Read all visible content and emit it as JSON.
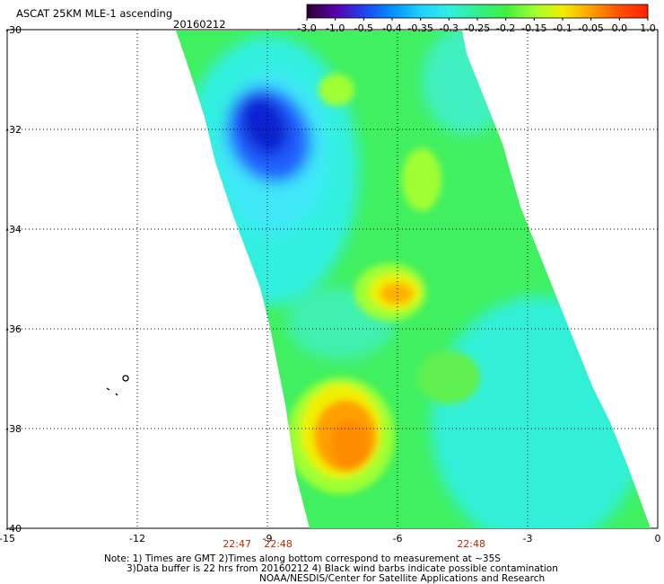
{
  "header": {
    "title": "ASCAT 25KM MLE-1 ascending",
    "date": "20160212"
  },
  "colorbar": {
    "tick_labels": [
      "-3.0",
      "-1.0",
      "-0.5",
      "-0.4",
      "-0.35",
      "-0.3",
      "-0.25",
      "-0.2",
      "-0.15",
      "-0.1",
      "-0.05",
      "0.0",
      "1.0"
    ],
    "colors": [
      "#2a0030",
      "#5a00a8",
      "#2040f0",
      "#0090ff",
      "#20d0ff",
      "#30f0e0",
      "#30f090",
      "#40f040",
      "#a0ff30",
      "#f0f000",
      "#ffa000",
      "#ff5000",
      "#ff2000"
    ]
  },
  "map": {
    "x_ticks": [
      "-15",
      "-12",
      "-9",
      "-6",
      "-3",
      "0"
    ],
    "y_ticks": [
      "-30",
      "-32",
      "-34",
      "-36",
      "-38",
      "-40"
    ],
    "time_labels": [
      "22:47",
      "22:48",
      "22:48"
    ],
    "xlim": [
      -15,
      0
    ],
    "ylim": [
      -40,
      -30
    ],
    "swath_colors": {
      "base": "#40f060",
      "cyan": "#30f0e0",
      "light_cyan": "#40e8f8",
      "blue": "#2060ff",
      "deep_blue": "#1020d0",
      "yellow_green": "#a0ff30",
      "yellow": "#f0f000",
      "orange": "#ffa000",
      "dark_orange": "#ff8c00"
    }
  },
  "footer": {
    "line1": "Note: 1) Times are GMT 2)Times along bottom correspond to measurement at ~35S",
    "line2": "3)Data buffer is 22 hrs from 20160212 4) Black wind barbs indicate possible contamination",
    "line3": "NOAA/NESDIS/Center for Satellite Applications and Research"
  }
}
